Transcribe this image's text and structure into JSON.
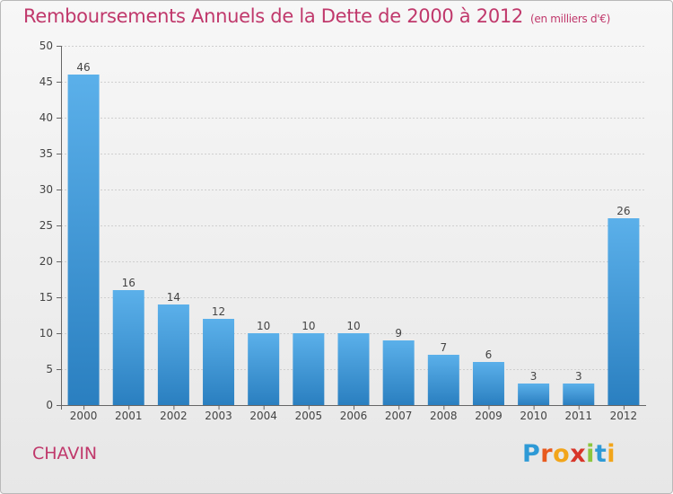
{
  "header": {
    "title": "Remboursements Annuels de la Dette de 2000 à 2012",
    "unit": "(en milliers d'€)"
  },
  "commune": "CHAVIN",
  "logo": {
    "letters": [
      "P",
      "r",
      "o",
      "x",
      "i",
      "t",
      "i"
    ],
    "colors": [
      "#2e9ad6",
      "#e85a1e",
      "#f2a51a",
      "#d8362a",
      "#8cc63e",
      "#2e9ad6",
      "#f2a51a"
    ]
  },
  "colors": {
    "bar_light": "#5bb0ea",
    "bar_dark": "#2a7fc0",
    "title": "#c0386b",
    "grid": "#cfcfcf"
  },
  "chart_data": {
    "type": "bar",
    "title": "Remboursements Annuels de la Dette de 2000 à 2012",
    "ylabel": "",
    "xlabel": "",
    "categories": [
      "2000",
      "2001",
      "2002",
      "2003",
      "2004",
      "2005",
      "2006",
      "2007",
      "2008",
      "2009",
      "2010",
      "2011",
      "2012"
    ],
    "values": [
      46,
      16,
      14,
      12,
      10,
      10,
      10,
      9,
      7,
      6,
      3,
      3,
      26
    ],
    "ylim": [
      0,
      50
    ],
    "yticks": [
      0,
      5,
      10,
      15,
      20,
      25,
      30,
      35,
      40,
      45,
      50
    ],
    "grid": true
  }
}
